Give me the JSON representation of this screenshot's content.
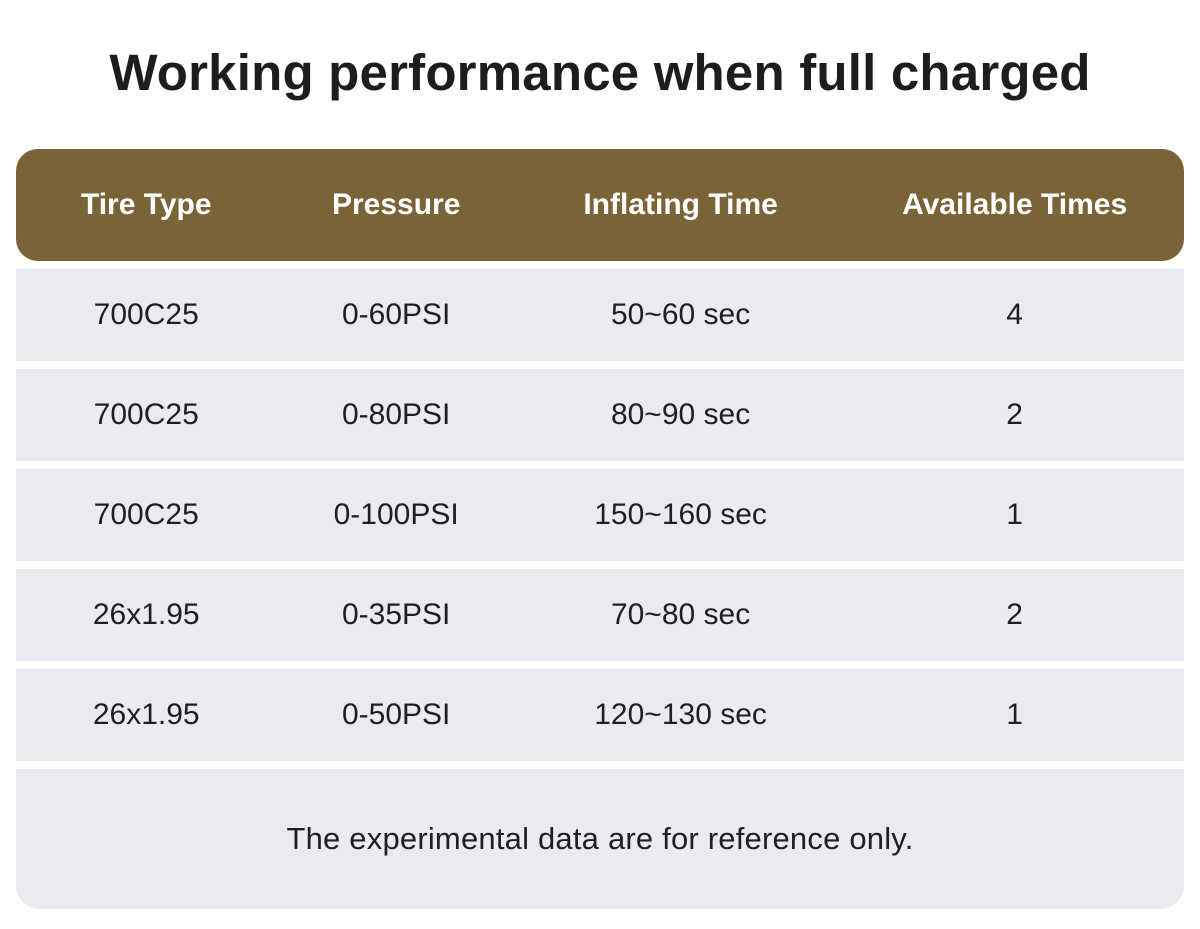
{
  "title": "Working performance when full charged",
  "chart_data": {
    "type": "table",
    "title": "Working performance when full charged",
    "columns": [
      "Tire Type",
      "Pressure",
      "Inflating Time",
      "Available Times"
    ],
    "rows": [
      [
        "700C25",
        "0-60PSI",
        "50~60 sec",
        "4"
      ],
      [
        "700C25",
        "0-80PSI",
        "80~90 sec",
        "2"
      ],
      [
        "700C25",
        "0-100PSI",
        "150~160 sec",
        "1"
      ],
      [
        "26x1.95",
        "0-35PSI",
        "70~80 sec",
        "2"
      ],
      [
        "26x1.95",
        "0-50PSI",
        "120~130 sec",
        "1"
      ]
    ],
    "note": "The experimental data are for reference only."
  },
  "colors": {
    "header_bg": "#7a6337",
    "header_text": "#ffffff",
    "row_bg": "#e9ebf1",
    "cell_text": "#1f1f21",
    "title_color": "#1d1d1f",
    "page_bg": "#ffffff"
  }
}
